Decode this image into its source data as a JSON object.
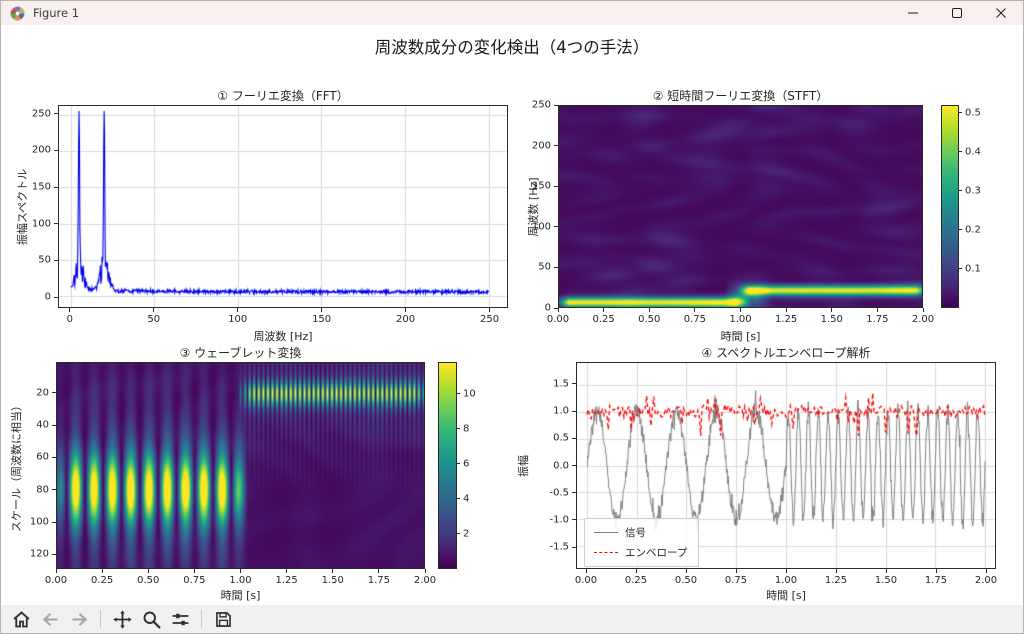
{
  "window": {
    "title": "Figure 1",
    "controls": [
      {
        "name": "minimize"
      },
      {
        "name": "maximize"
      },
      {
        "name": "close"
      }
    ]
  },
  "figure": {
    "title": "周波数成分の変化検出（4つの手法）"
  },
  "toolbar": {
    "buttons": [
      "home",
      "back",
      "forward",
      "pan",
      "zoom",
      "configure-subplots",
      "save"
    ]
  },
  "chart_data": [
    {
      "type": "line",
      "title": "① フーリエ変換（FFT）",
      "xlabel": "周波数 [Hz]",
      "ylabel": "振幅スペクトル",
      "xlim": [
        -7,
        261
      ],
      "ylim": [
        -15,
        262
      ],
      "xticks": {
        "values": [
          0,
          50,
          100,
          150,
          200,
          250
        ],
        "labels": [
          "0",
          "50",
          "100",
          "150",
          "200",
          "250"
        ]
      },
      "yticks": {
        "values": [
          0,
          50,
          100,
          150,
          200,
          250
        ],
        "labels": [
          "0",
          "50",
          "100",
          "150",
          "200",
          "250"
        ]
      },
      "grid": true,
      "line_color": "#0000ee",
      "peaks": [
        {
          "freq": 5,
          "amp": 245
        },
        {
          "freq": 20,
          "amp": 250
        }
      ],
      "noise_floor": 6
    },
    {
      "type": "heatmap",
      "title": "② 短時間フーリエ変換（STFT）",
      "xlabel": "時間 [s]",
      "ylabel": "周波数 [Hz]",
      "xlim": [
        0,
        2
      ],
      "ylim": [
        0,
        250
      ],
      "xticks": {
        "values": [
          0,
          0.25,
          0.5,
          0.75,
          1,
          1.25,
          1.5,
          1.75,
          2
        ],
        "labels": [
          "0.00",
          "0.25",
          "0.50",
          "0.75",
          "1.00",
          "1.25",
          "1.50",
          "1.75",
          "2.00"
        ]
      },
      "yticks": {
        "values": [
          0,
          50,
          100,
          150,
          200,
          250
        ],
        "labels": [
          "0",
          "50",
          "100",
          "150",
          "200",
          "250"
        ]
      },
      "colormap": "viridis",
      "colorbar": {
        "range": [
          0,
          0.52
        ],
        "ticks": {
          "values": [
            0.1,
            0.2,
            0.3,
            0.4,
            0.5
          ],
          "labels": [
            "0.1",
            "0.2",
            "0.3",
            "0.4",
            "0.5"
          ]
        }
      },
      "bands": [
        {
          "freq": 5,
          "time": [
            0,
            1
          ],
          "intensity": 0.5,
          "sigma": 4.5
        },
        {
          "freq": 20,
          "time": [
            1,
            2
          ],
          "intensity": 0.48,
          "sigma": 4.5
        },
        {
          "freq": 12,
          "time": [
            0.93,
            1.12
          ],
          "intensity": 0.16,
          "sigma": 11
        }
      ]
    },
    {
      "type": "heatmap",
      "title": "③ ウェーブレット変換",
      "xlabel": "時間 [s]",
      "ylabel": "スケール（周波数に相当）",
      "xlim": [
        0,
        2
      ],
      "ylim": [
        129,
        1
      ],
      "xticks": {
        "values": [
          0,
          0.25,
          0.5,
          0.75,
          1,
          1.25,
          1.5,
          1.75,
          2
        ],
        "labels": [
          "0.00",
          "0.25",
          "0.50",
          "0.75",
          "1.00",
          "1.25",
          "1.50",
          "1.75",
          "2.00"
        ]
      },
      "yticks": {
        "values": [
          20,
          40,
          60,
          80,
          100,
          120
        ],
        "labels": [
          "20",
          "40",
          "60",
          "80",
          "100",
          "120"
        ]
      },
      "colormap": "viridis",
      "colorbar": {
        "range": [
          0,
          11.8
        ],
        "ticks": {
          "values": [
            2,
            4,
            6,
            8,
            10
          ],
          "labels": [
            "2",
            "4",
            "6",
            "8",
            "10"
          ]
        }
      },
      "components": [
        {
          "scale": 80,
          "sigma": 15,
          "time": [
            0,
            1
          ],
          "peak": 11,
          "stripe_hz": 10,
          "streak": 2.6,
          "streak_sigma": 45
        },
        {
          "scale": 20,
          "sigma": 5.5,
          "time": [
            1,
            2
          ],
          "peak": 9.5,
          "stripe_hz": 40,
          "streak": 1.8,
          "streak_sigma": 26
        }
      ]
    },
    {
      "type": "line",
      "title": "④ スペクトルエンベロープ解析",
      "xlabel": "時間 [s]",
      "ylabel": "振幅",
      "xlim": [
        -0.05,
        2.05
      ],
      "ylim": [
        -1.9,
        1.9
      ],
      "xticks": {
        "values": [
          0,
          0.25,
          0.5,
          0.75,
          1,
          1.25,
          1.5,
          1.75,
          2
        ],
        "labels": [
          "0.00",
          "0.25",
          "0.50",
          "0.75",
          "1.00",
          "1.25",
          "1.50",
          "1.75",
          "2.00"
        ]
      },
      "yticks": {
        "values": [
          -1.5,
          -1.0,
          -0.5,
          0.0,
          0.5,
          1.0,
          1.5
        ],
        "labels": [
          "-1.5",
          "-1.0",
          "-0.5",
          "0.0",
          "0.5",
          "1.0",
          "1.5"
        ]
      },
      "grid": true,
      "legend": [
        {
          "label": "信号",
          "color": "#808080",
          "style": "solid"
        },
        {
          "label": "エンベロープ",
          "color": "#ff0000",
          "style": "dashed"
        }
      ],
      "signal": {
        "segments": [
          {
            "freq": 5,
            "time": [
              0,
              1
            ]
          },
          {
            "freq": 20,
            "time": [
              1,
              2
            ]
          }
        ],
        "amplitude": 1.0,
        "noise": 0.15,
        "color": "#808080"
      },
      "envelope": {
        "mean": 1.0,
        "noise": 0.12,
        "color": "#ff0000"
      }
    }
  ]
}
